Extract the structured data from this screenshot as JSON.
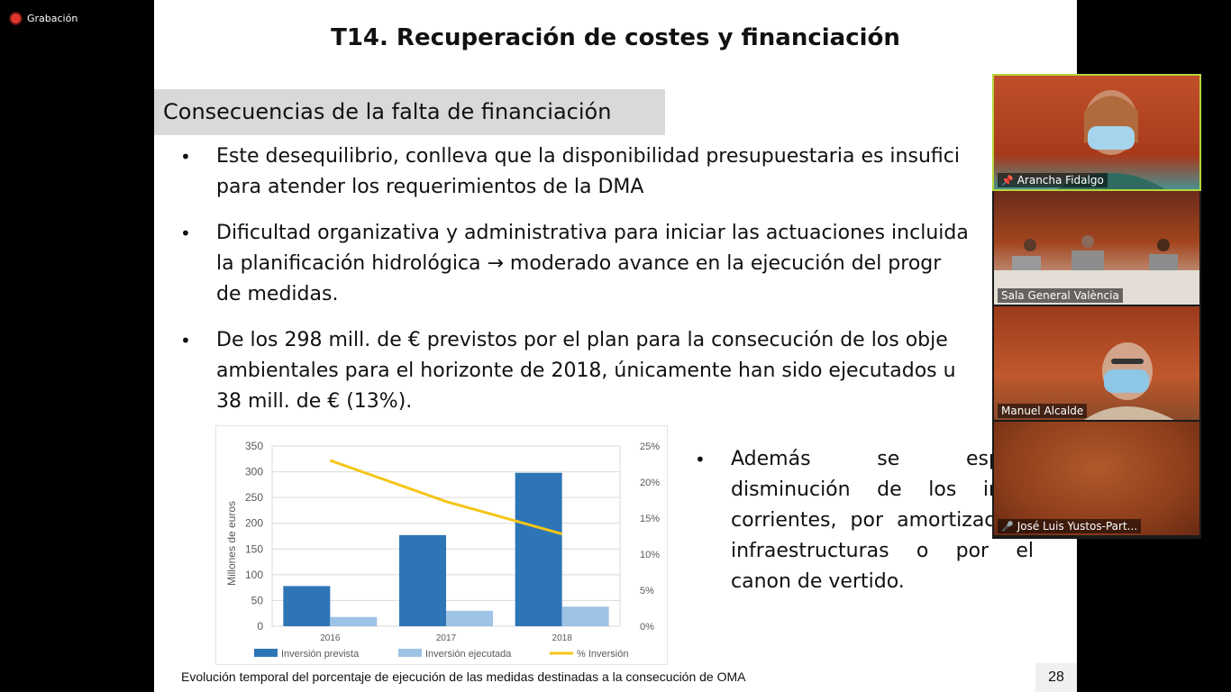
{
  "recording": {
    "label": "Grabación"
  },
  "slide": {
    "title": "T14. Recuperación de costes y financiación",
    "section": "Consecuencias de la falta de financiación",
    "bullets": [
      {
        "lines": [
          "Este desequilibrio, conlleva que la disponibilidad presupuestaria es insufici",
          "para atender los requerimientos de la DMA"
        ]
      },
      {
        "lines": [
          "Dificultad organizativa y administrativa para iniciar las actuaciones incluida",
          "la planificación hidrológica → moderado avance en la ejecución del progr",
          "de medidas."
        ]
      },
      {
        "lines": [
          "De los 298 mill. de € previstos por el plan para la consecución de los obje",
          "ambientales para el horizonte de 2018, únicamente han sido ejecutados u",
          "38 mill. de € (13%)."
        ]
      }
    ],
    "bullet_right": {
      "text": "Además se espera disminución de los ingre corrientes, por amortizac de infraestructuras o por el canon de vertido."
    },
    "caption": "Evolución temporal del porcentaje de ejecución de las medidas destinadas a la consecución de OMA",
    "page_number": "28"
  },
  "chart_data": {
    "type": "bar",
    "categories": [
      "2016",
      "2017",
      "2018"
    ],
    "ylabel": "Millones de euros",
    "ylim": [
      0,
      350
    ],
    "y_ticks": [
      "0",
      "50",
      "100",
      "150",
      "200",
      "250",
      "300",
      "350"
    ],
    "y2lim": [
      0,
      25
    ],
    "y2_ticks": [
      "0%",
      "5%",
      "10%",
      "15%",
      "20%",
      "25%"
    ],
    "series": [
      {
        "name": "Inversión prevista",
        "type": "bar",
        "color": "#2e75b6",
        "values": [
          78,
          177,
          298
        ]
      },
      {
        "name": "Inversión ejecutada",
        "type": "bar",
        "color": "#9dc3e6",
        "values": [
          18,
          30,
          38
        ]
      },
      {
        "name": "% Inversión",
        "type": "line",
        "axis": "secondary",
        "color": "#f5c518",
        "values": [
          23,
          17.3,
          12.8
        ]
      }
    ],
    "legend_position": "bottom"
  },
  "participants": [
    {
      "name": "Arancha Fidalgo",
      "status": "pin"
    },
    {
      "name": "Sala General València",
      "status": ""
    },
    {
      "name": "Manuel Alcalde",
      "status": ""
    },
    {
      "name": "José Luis Yustos-Part...",
      "status": "mic-off"
    }
  ]
}
